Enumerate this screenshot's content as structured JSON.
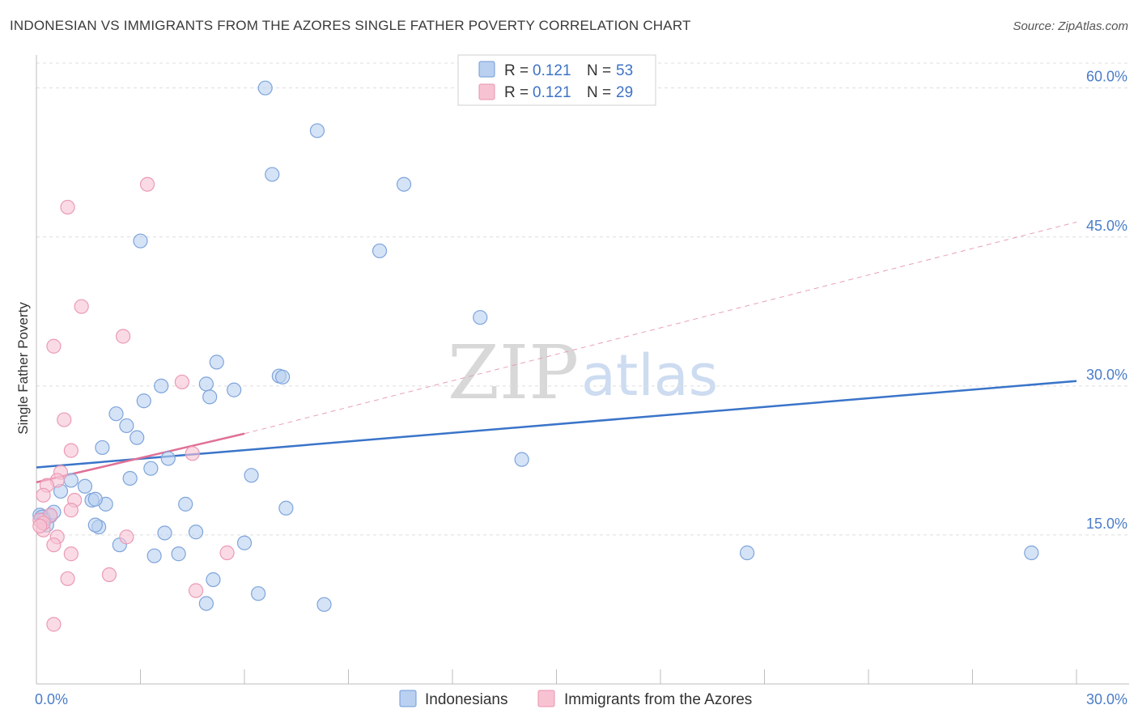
{
  "title": "INDONESIAN VS IMMIGRANTS FROM THE AZORES SINGLE FATHER POVERTY CORRELATION CHART",
  "source": "Source: ZipAtlas.com",
  "watermark": {
    "zip": "ZIP",
    "atlas": "atlas"
  },
  "colors": {
    "blue": "#3a74c9",
    "blue_fill": "#b9d0f0",
    "pink": "#e07096",
    "pink_fill": "#f7c3d3",
    "tick": "#4a7cc9"
  },
  "legend": {
    "r_label": "R = ",
    "n_label": "N = ",
    "rows": [
      {
        "series": "Indonesians",
        "r": "0.121",
        "n": "53"
      },
      {
        "series": "Immigrants from the Azores",
        "r": "0.121",
        "n": "29"
      }
    ]
  },
  "chart_data": {
    "type": "scatter",
    "title": "INDONESIAN VS IMMIGRANTS FROM THE AZORES SINGLE FATHER POVERTY CORRELATION CHART",
    "xlabel": "",
    "ylabel": "Single Father Poverty",
    "xlim": [
      0,
      30
    ],
    "ylim": [
      0,
      60
    ],
    "x_tick_labels": [
      "0.0%",
      "30.0%"
    ],
    "y_ticks": [
      15,
      30,
      45,
      60
    ],
    "y_tick_labels": [
      "15.0%",
      "30.0%",
      "45.0%",
      "60.0%"
    ],
    "grid": true,
    "legend_position": "top-center",
    "series": [
      {
        "name": "Indonesians",
        "color": "#3a74c9",
        "points": [
          [
            6.6,
            60.0
          ],
          [
            8.1,
            55.7
          ],
          [
            6.8,
            51.3
          ],
          [
            10.6,
            50.3
          ],
          [
            3.0,
            44.6
          ],
          [
            9.9,
            43.6
          ],
          [
            12.8,
            36.9
          ],
          [
            5.2,
            32.4
          ],
          [
            7.0,
            31.0
          ],
          [
            7.1,
            30.9
          ],
          [
            3.6,
            30.0
          ],
          [
            4.9,
            30.2
          ],
          [
            5.7,
            29.6
          ],
          [
            3.1,
            28.5
          ],
          [
            5.0,
            28.9
          ],
          [
            2.3,
            27.2
          ],
          [
            2.6,
            26.0
          ],
          [
            2.9,
            24.8
          ],
          [
            1.9,
            23.8
          ],
          [
            3.8,
            22.7
          ],
          [
            3.3,
            21.7
          ],
          [
            2.7,
            20.7
          ],
          [
            6.2,
            21.0
          ],
          [
            14.0,
            22.6
          ],
          [
            1.0,
            20.5
          ],
          [
            1.4,
            19.9
          ],
          [
            1.6,
            18.5
          ],
          [
            2.0,
            18.1
          ],
          [
            0.7,
            19.4
          ],
          [
            1.7,
            18.6
          ],
          [
            7.2,
            17.7
          ],
          [
            4.3,
            18.1
          ],
          [
            0.4,
            16.9
          ],
          [
            0.2,
            16.8
          ],
          [
            0.5,
            17.3
          ],
          [
            0.3,
            16.0
          ],
          [
            1.8,
            15.8
          ],
          [
            1.7,
            16.0
          ],
          [
            3.7,
            15.2
          ],
          [
            4.6,
            15.3
          ],
          [
            2.4,
            14.0
          ],
          [
            6.0,
            14.2
          ],
          [
            4.1,
            13.1
          ],
          [
            3.4,
            12.9
          ],
          [
            5.1,
            10.5
          ],
          [
            6.4,
            9.1
          ],
          [
            4.9,
            8.1
          ],
          [
            8.3,
            8.0
          ],
          [
            20.5,
            13.2
          ],
          [
            28.7,
            13.2
          ],
          [
            0.1,
            17.0
          ],
          [
            0.15,
            16.8
          ],
          [
            0.2,
            16.5
          ]
        ]
      },
      {
        "name": "Immigrants from the Azores",
        "color": "#e07096",
        "points": [
          [
            3.2,
            50.3
          ],
          [
            0.9,
            48.0
          ],
          [
            1.3,
            38.0
          ],
          [
            2.5,
            35.0
          ],
          [
            0.5,
            34.0
          ],
          [
            4.2,
            30.4
          ],
          [
            0.8,
            26.6
          ],
          [
            1.0,
            23.5
          ],
          [
            4.5,
            23.2
          ],
          [
            0.7,
            21.3
          ],
          [
            0.6,
            20.5
          ],
          [
            0.3,
            20.0
          ],
          [
            0.2,
            19.0
          ],
          [
            1.1,
            18.5
          ],
          [
            1.0,
            17.5
          ],
          [
            0.4,
            17.0
          ],
          [
            0.1,
            16.5
          ],
          [
            0.2,
            15.5
          ],
          [
            0.6,
            14.8
          ],
          [
            2.6,
            14.8
          ],
          [
            0.5,
            14.0
          ],
          [
            1.0,
            13.1
          ],
          [
            5.5,
            13.2
          ],
          [
            2.1,
            11.0
          ],
          [
            0.9,
            10.6
          ],
          [
            4.6,
            9.4
          ],
          [
            0.5,
            6.0
          ],
          [
            0.2,
            16.2
          ],
          [
            0.1,
            15.9
          ]
        ]
      }
    ],
    "trend_lines": [
      {
        "series": "Indonesians",
        "x": [
          0,
          30
        ],
        "y": [
          21.8,
          30.5
        ]
      },
      {
        "series": "Immigrants from the Azores",
        "x": [
          0,
          6
        ],
        "y": [
          20.3,
          25.2
        ],
        "extended_to": [
          30,
          46.5
        ]
      }
    ]
  }
}
